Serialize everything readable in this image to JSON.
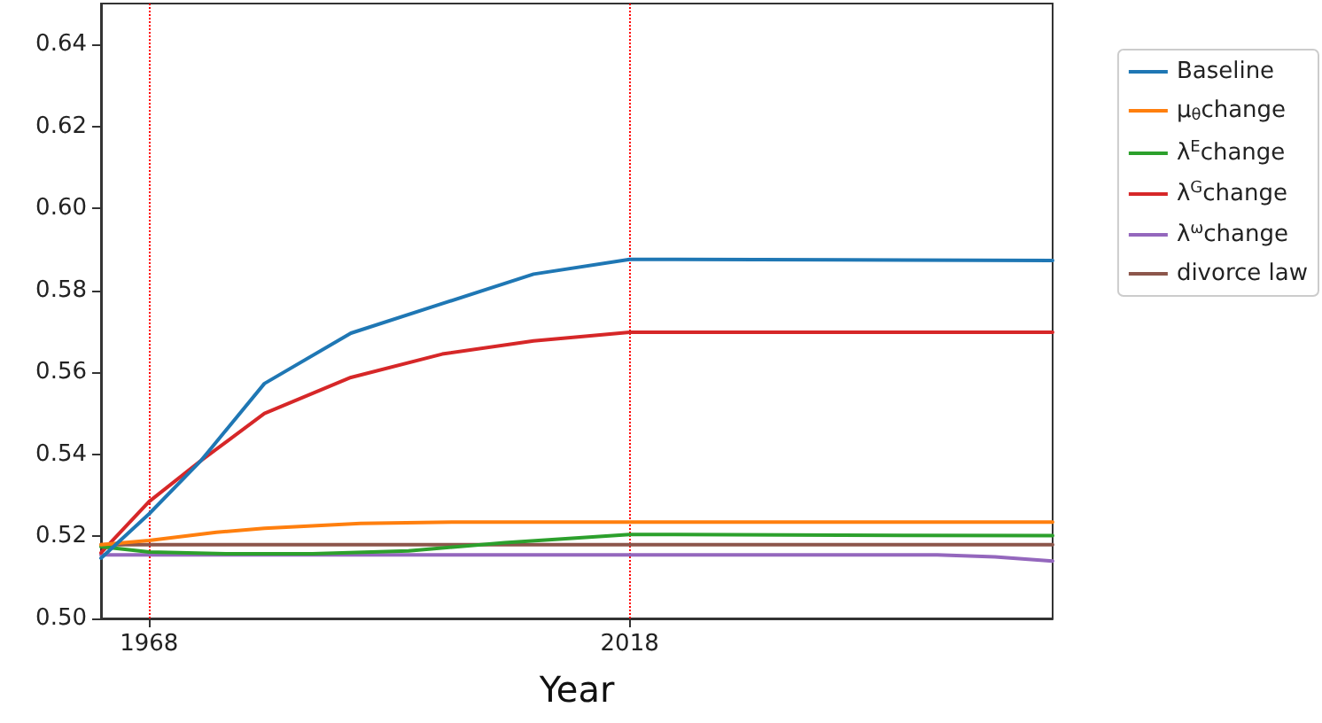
{
  "chart_data": {
    "type": "line",
    "xlabel": "Year",
    "xlim": [
      1963,
      2062
    ],
    "xticks": [
      1968,
      2018
    ],
    "ylim": [
      0.5,
      0.65
    ],
    "yticks": [
      {
        "value": 0.5,
        "label": "0.50"
      },
      0.52,
      0.54,
      0.56,
      0.58,
      {
        "value": 0.6,
        "label": "0.60"
      },
      0.62,
      0.64
    ],
    "grid": false,
    "legend": "right",
    "marker": "none",
    "line_style": "solid",
    "series": [
      {
        "name": "Baseline",
        "color": "#1f77b4",
        "x": [
          1963,
          1968,
          1973.4,
          1980,
          1989,
          1998.5,
          2008,
          2018,
          2040,
          2062
        ],
        "values": [
          0.5147,
          0.5255,
          0.5385,
          0.5573,
          0.5696,
          0.5768,
          0.584,
          0.5876,
          0.5875,
          0.5873
        ]
      },
      {
        "name": "μ$_{θ}$change",
        "color": "#ff7f0e",
        "x": [
          1963,
          1968,
          1975,
          1980,
          1990,
          2000,
          2018,
          2062
        ],
        "values": [
          0.518,
          0.519,
          0.521,
          0.522,
          0.5232,
          0.5235,
          0.5235,
          0.5235
        ]
      },
      {
        "name": "λ$^{E}$change",
        "color": "#2ca02c",
        "x": [
          1963,
          1968,
          1976,
          1985,
          1995,
          2005,
          2018,
          2040,
          2062
        ],
        "values": [
          0.5175,
          0.5162,
          0.5158,
          0.5158,
          0.5165,
          0.5185,
          0.5205,
          0.5203,
          0.5202
        ]
      },
      {
        "name": "λ$^{G}$change",
        "color": "#d62728",
        "x": [
          1963,
          1968,
          1973.4,
          1980,
          1989,
          1998.5,
          2008,
          2018,
          2062
        ],
        "values": [
          0.516,
          0.5285,
          0.5385,
          0.55,
          0.5588,
          0.5645,
          0.5677,
          0.5698,
          0.5698
        ]
      },
      {
        "name": "λ$^{ω}$change",
        "color": "#9467bd",
        "x": [
          1963,
          1968,
          2018,
          2050,
          2056,
          2062
        ],
        "values": [
          0.5155,
          0.5155,
          0.5155,
          0.5155,
          0.515,
          0.514
        ]
      },
      {
        "name": "divorce law",
        "color": "#8c564b",
        "x": [
          1963,
          2062
        ],
        "values": [
          0.518,
          0.518
        ]
      }
    ],
    "ref_lines": [
      {
        "axis": "x",
        "value": 1968,
        "label": null,
        "color": "#ff0000",
        "line_style": "dotted"
      },
      {
        "axis": "x",
        "value": 2018,
        "label": null,
        "color": "#ff0000",
        "line_style": "dotted"
      }
    ]
  }
}
